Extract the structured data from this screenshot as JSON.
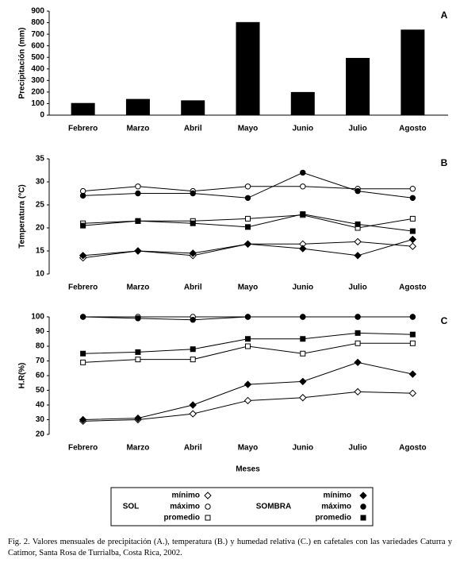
{
  "chart_data": [
    {
      "type": "bar",
      "panel_label": "A",
      "y_label": "Precipitación (mm)",
      "categories": [
        "Febrero",
        "Marzo",
        "Abril",
        "Mayo",
        "Junio",
        "Julio",
        "Agosto"
      ],
      "values": [
        105,
        140,
        128,
        805,
        200,
        495,
        740
      ],
      "color": "#000000",
      "ylim": [
        0,
        900
      ],
      "yticks": [
        0,
        100,
        200,
        300,
        400,
        500,
        600,
        700,
        800,
        900
      ]
    },
    {
      "type": "line",
      "panel_label": "B",
      "y_label": "Temperatura (°C)",
      "categories": [
        "Febrero",
        "Marzo",
        "Abril",
        "Mayo",
        "Junio",
        "Julio",
        "Agosto"
      ],
      "series": [
        {
          "marker": "diamond",
          "filled": false,
          "values": [
            13.5,
            15,
            14,
            16.5,
            16.5,
            17,
            16
          ]
        },
        {
          "marker": "circle",
          "filled": false,
          "values": [
            28,
            29,
            28,
            29,
            29,
            28.5,
            28.5
          ]
        },
        {
          "marker": "square",
          "filled": false,
          "values": [
            21,
            21.5,
            21.5,
            22,
            22.8,
            20,
            22
          ]
        },
        {
          "marker": "diamond",
          "filled": true,
          "values": [
            14,
            15,
            14.5,
            16.5,
            15.5,
            14,
            17.5
          ]
        },
        {
          "marker": "circle",
          "filled": true,
          "values": [
            27,
            27.5,
            27.5,
            26.5,
            32,
            28,
            26.5
          ]
        },
        {
          "marker": "square",
          "filled": true,
          "values": [
            20.5,
            21.5,
            21,
            20.2,
            23,
            20.8,
            19.3
          ]
        }
      ],
      "ylim": [
        10,
        35
      ],
      "yticks": [
        10,
        15,
        20,
        25,
        30,
        35
      ]
    },
    {
      "type": "line",
      "panel_label": "C",
      "y_label": "H.R(%)",
      "x_label": "Meses",
      "categories": [
        "Febrero",
        "Marzo",
        "Abril",
        "Mayo",
        "Junio",
        "Julio",
        "Agosto"
      ],
      "series": [
        {
          "marker": "diamond",
          "filled": false,
          "values": [
            29,
            30,
            34,
            43,
            45,
            49,
            48
          ]
        },
        {
          "marker": "circle",
          "filled": false,
          "values": [
            100,
            100,
            100,
            100,
            100,
            100,
            100
          ]
        },
        {
          "marker": "square",
          "filled": false,
          "values": [
            69,
            71,
            71,
            80,
            75,
            82,
            82
          ]
        },
        {
          "marker": "diamond",
          "filled": true,
          "values": [
            30,
            31,
            40,
            54,
            56,
            69,
            61
          ]
        },
        {
          "marker": "circle",
          "filled": true,
          "values": [
            100,
            99,
            98,
            100,
            100,
            100,
            100
          ]
        },
        {
          "marker": "square",
          "filled": true,
          "values": [
            75,
            76,
            78,
            85,
            85,
            89,
            88
          ]
        }
      ],
      "ylim": [
        20,
        100
      ],
      "yticks": [
        20,
        30,
        40,
        50,
        60,
        70,
        80,
        90,
        100
      ]
    }
  ],
  "legend": {
    "groups": [
      {
        "label": "SOL",
        "entries": [
          {
            "name": "mínimo",
            "marker": "diamond",
            "filled": false
          },
          {
            "name": "máximo",
            "marker": "circle",
            "filled": false
          },
          {
            "name": "promedio",
            "marker": "square",
            "filled": false
          }
        ]
      },
      {
        "label": "SOMBRA",
        "entries": [
          {
            "name": "mínimo",
            "marker": "diamond",
            "filled": true
          },
          {
            "name": "máximo",
            "marker": "circle",
            "filled": true
          },
          {
            "name": "promedio",
            "marker": "square",
            "filled": true
          }
        ]
      }
    ]
  },
  "caption": "Fig. 2. Valores mensuales de precipitación (A.), temperatura (B.) y humedad relativa (C.) en cafetales con las variedades Caturra y Catimor, Santa Rosa de Turrialba, Costa Rica, 2002."
}
